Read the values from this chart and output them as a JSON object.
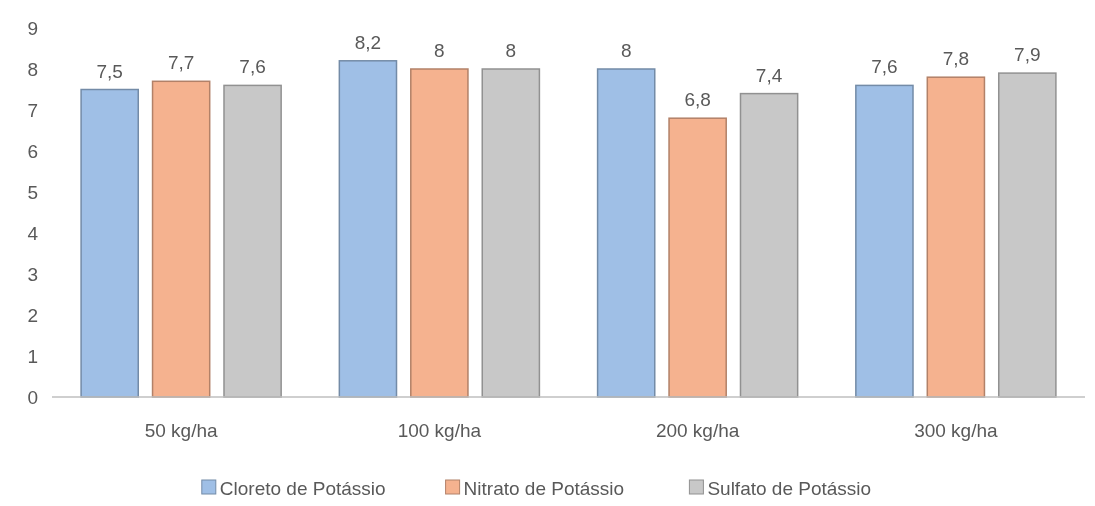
{
  "chart_data": {
    "type": "bar",
    "categories": [
      "50 kg/ha",
      "100 kg/ha",
      "200 kg/ha",
      "300 kg/ha"
    ],
    "series": [
      {
        "name": "Cloreto de Potássio",
        "color": "#9fbfe6",
        "values": [
          7.5,
          8.2,
          8,
          7.6
        ],
        "value_labels": [
          "7,5",
          "8,2",
          "8",
          "7,6"
        ]
      },
      {
        "name": "Nitrato de Potássio",
        "color": "#f5b28f",
        "values": [
          7.7,
          8,
          6.8,
          7.8
        ],
        "value_labels": [
          "7,7",
          "8",
          "6,8",
          "7,8"
        ]
      },
      {
        "name": "Sulfato de Potássio",
        "color": "#c8c8c8",
        "values": [
          7.6,
          8,
          7.4,
          7.9
        ],
        "value_labels": [
          "7,6",
          "8",
          "7,4",
          "7,9"
        ]
      }
    ],
    "ylim": [
      0,
      9
    ],
    "yticks": [
      0,
      1,
      2,
      3,
      4,
      5,
      6,
      7,
      8,
      9
    ],
    "legend": "bottom"
  }
}
